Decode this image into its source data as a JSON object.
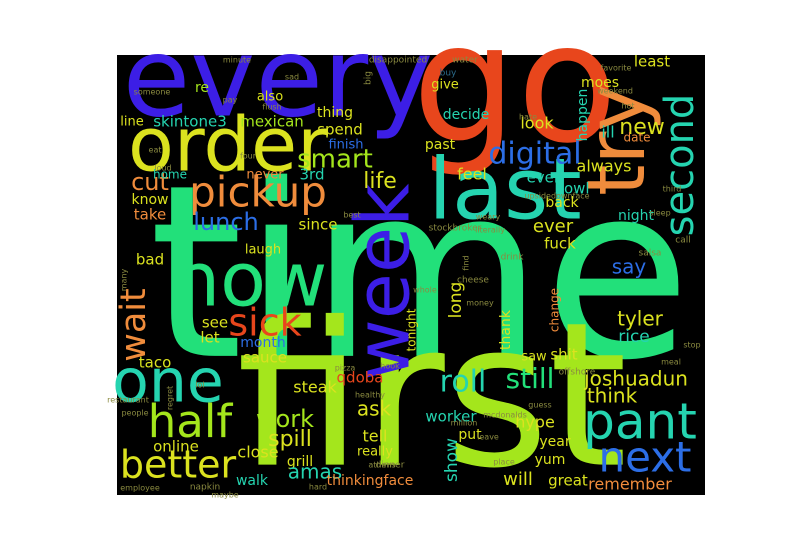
{
  "words": [
    "time",
    "first",
    "go",
    "every",
    "order",
    "try",
    "last",
    "now",
    "week",
    "one",
    "pickup",
    "second",
    "digital",
    "half",
    "better",
    "pant",
    "next",
    "sick",
    "wait",
    "roll",
    "still",
    "smart",
    "cut",
    "lunch",
    "life",
    "new",
    "re",
    "also",
    "skintone3",
    "mexican",
    "line",
    "thing",
    "spend",
    "finish",
    "3rd",
    "home",
    "never",
    "know",
    "take",
    "since",
    "feel",
    "past",
    "decide",
    "look",
    "give",
    "happen",
    "moes",
    "least",
    "ill",
    "date",
    "always",
    "even",
    "bowl",
    "back",
    "night",
    "ever",
    "fuck",
    "laugh",
    "bad",
    "say",
    "tyler",
    "rice",
    "long",
    "thank",
    "saw",
    "shit",
    "see",
    "let",
    "month",
    "sauce",
    "taco",
    "steak",
    "qdoba",
    "joshuadun",
    "think",
    "ask",
    "work",
    "spill",
    "online",
    "close",
    "grill",
    "walk",
    "amas",
    "thinkingface",
    "tell",
    "really",
    "worker",
    "show",
    "hype",
    "year",
    "yum",
    "will",
    "great",
    "remember",
    "put",
    "tonight",
    "change",
    "minute",
    "sad",
    "flush",
    "disappointed",
    "water",
    "buy",
    "hate",
    "favorite",
    "weekend",
    "someone",
    "pay",
    "big",
    "hot",
    "drink",
    "whole",
    "cheese",
    "money",
    "find",
    "lol",
    "regret",
    "restaurant",
    "employee",
    "napkin",
    "maybe",
    "dinner",
    "place",
    "leave",
    "athens",
    "million",
    "mcdonalds",
    "guess",
    "people",
    "hard",
    "stop",
    "meal",
    "offshore",
    "salsa",
    "hook",
    "upsidedownface",
    "stockbroker",
    "literally",
    "weary",
    "best",
    "third",
    "sleep",
    "call",
    "many",
    "four",
    "eat",
    "loud",
    "healthy",
    "pizza",
    "neutralface"
  ]
}
